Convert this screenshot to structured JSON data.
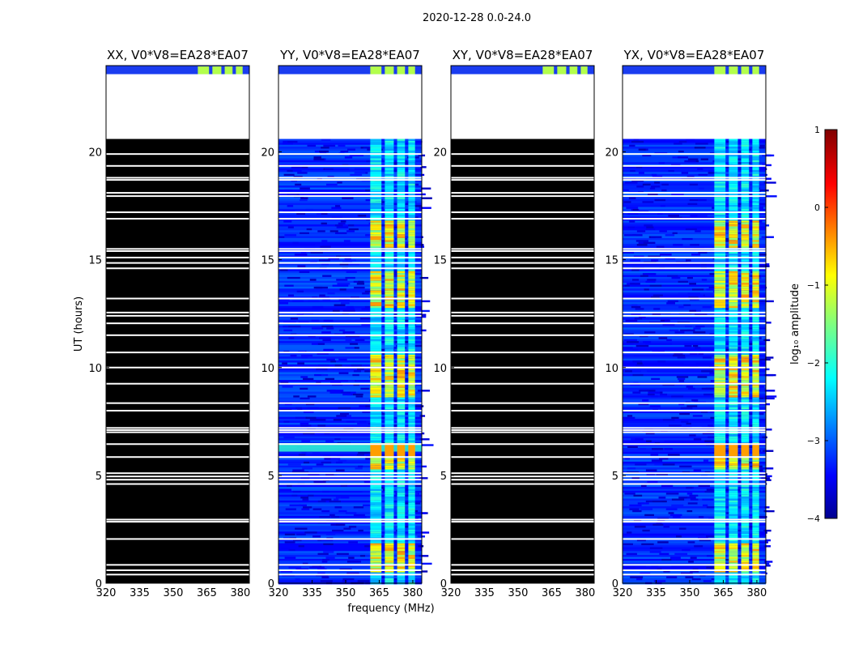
{
  "suptitle": "2020-12-28 0.0-24.0",
  "colors": {
    "blocked_panel": "#000000",
    "gap": "#ffffff",
    "frame": "#000000"
  },
  "chart_data": {
    "type": "heatmap",
    "xlabel": "frequency (MHz)",
    "ylabel": "UT (hours)",
    "x_ticks": [
      320,
      335,
      350,
      365,
      380
    ],
    "y_ticks": [
      0,
      5,
      10,
      15,
      20
    ],
    "xlim": [
      320,
      384
    ],
    "ylim": [
      0,
      24
    ],
    "panels": [
      {
        "title": "XX, V0*V8=EA28*EA07",
        "pol": "XX",
        "mostly_masked": true
      },
      {
        "title": "YY, V0*V8=EA28*EA07",
        "pol": "YY",
        "mostly_masked": false
      },
      {
        "title": "XY, V0*V8=EA28*EA07",
        "pol": "XY",
        "mostly_masked": true
      },
      {
        "title": "YX, V0*V8=EA28*EA07",
        "pol": "YX",
        "mostly_masked": false
      }
    ],
    "missing_data_ut": [
      20.6,
      23.6
    ],
    "flagged_rows_ut": [
      0.4,
      0.6,
      0.85,
      2.05,
      2.85,
      2.95,
      4.6,
      4.8,
      4.95,
      5.1,
      5.85,
      6.45,
      7.0,
      7.1,
      7.2,
      8.0,
      8.35,
      9.25,
      10.0,
      10.7,
      11.5,
      12.05,
      12.4,
      12.55,
      13.2,
      14.6,
      14.85,
      15.1,
      15.4,
      15.5,
      16.9,
      17.2,
      17.95,
      18.1,
      18.7,
      18.8,
      19.35,
      19.9
    ],
    "bright_band_mhz": [
      361,
      381
    ],
    "bright_epochs_ut": [
      [
        0.5,
        1.9
      ],
      [
        5.3,
        6.5
      ],
      [
        8.7,
        10.6
      ],
      [
        12.8,
        14.5
      ],
      [
        15.6,
        16.9
      ],
      [
        23.7,
        24.0
      ]
    ],
    "colorbar": {
      "label": "log₁₀ amplitude",
      "min": -4,
      "max": 1,
      "ticks": [
        1,
        0,
        -1,
        -2,
        -3,
        -4
      ],
      "colormap": "jet"
    }
  }
}
